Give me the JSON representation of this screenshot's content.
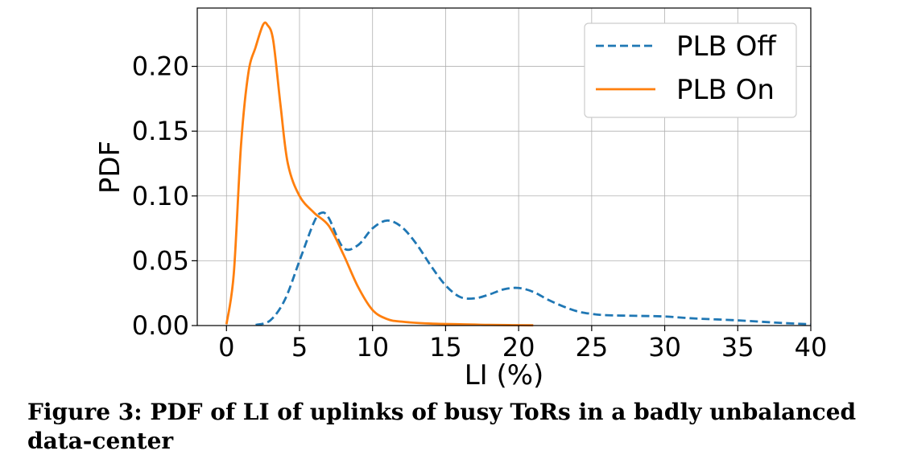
{
  "chart_data": {
    "type": "line",
    "xlabel": "LI (%)",
    "ylabel": "PDF",
    "xlim": [
      -2,
      40
    ],
    "ylim": [
      0,
      0.245
    ],
    "xticks": [
      0,
      5,
      10,
      15,
      20,
      25,
      30,
      35,
      40
    ],
    "yticks": [
      0.0,
      0.05,
      0.1,
      0.15,
      0.2
    ],
    "ytick_labels": [
      "0.00",
      "0.05",
      "0.10",
      "0.15",
      "0.20"
    ],
    "grid": true,
    "legend_position": "top-right",
    "series": [
      {
        "name": "PLB Off",
        "color": "#1f77b4",
        "style": "dashed",
        "x": [
          2,
          3,
          4,
          5,
          6,
          6.5,
          7,
          8,
          9,
          10,
          11,
          12,
          13,
          14,
          15,
          16,
          17,
          18,
          19,
          20,
          21,
          22,
          23,
          24,
          25,
          26,
          28,
          30,
          32,
          35,
          38,
          40
        ],
        "y": [
          0.0005,
          0.004,
          0.02,
          0.05,
          0.08,
          0.087,
          0.083,
          0.06,
          0.062,
          0.075,
          0.081,
          0.076,
          0.063,
          0.046,
          0.031,
          0.022,
          0.021,
          0.024,
          0.028,
          0.029,
          0.026,
          0.02,
          0.015,
          0.011,
          0.009,
          0.008,
          0.0075,
          0.007,
          0.0055,
          0.004,
          0.002,
          0.001
        ]
      },
      {
        "name": "PLB On",
        "color": "#ff7f0e",
        "style": "solid",
        "x": [
          0,
          0.5,
          1,
          1.5,
          2,
          2.5,
          2.8,
          3.2,
          3.7,
          4.2,
          5,
          6,
          7,
          8,
          9,
          10,
          11,
          12,
          14,
          16,
          18,
          21
        ],
        "y": [
          0.001,
          0.04,
          0.14,
          0.195,
          0.215,
          0.232,
          0.232,
          0.22,
          0.17,
          0.125,
          0.1,
          0.087,
          0.077,
          0.055,
          0.03,
          0.012,
          0.005,
          0.003,
          0.0015,
          0.001,
          0.0005,
          0.0002
        ]
      }
    ]
  },
  "caption": "Figure 3: PDF of LI of uplinks of busy ToRs in a badly unbalanced data-center"
}
